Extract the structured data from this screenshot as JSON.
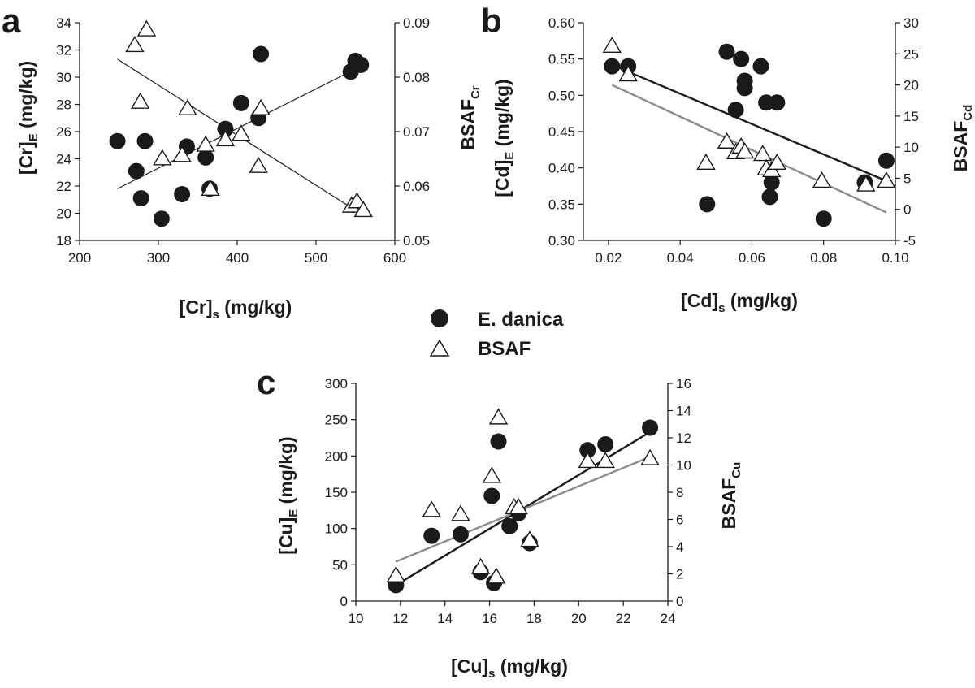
{
  "legend": {
    "position": "center",
    "entries": [
      {
        "label": "E. danica",
        "marker": "filled-circle"
      },
      {
        "label": "BSAF",
        "marker": "open-triangle"
      }
    ]
  },
  "colors": {
    "circle": "#1a1a1a",
    "triangle_fill": "#ffffff",
    "fit_black": "#1a1a1a",
    "fit_gray": "#8c8c8c",
    "fit_thin": "#222222"
  },
  "chart_data": [
    {
      "id": "a",
      "panel_label": "a",
      "type": "scatter",
      "xlabel": {
        "main": "[Cr]",
        "sub": "s",
        "unit": " (mg/kg)"
      },
      "ylabel_left": {
        "main": "[Cr]",
        "sub": "E",
        "unit": " (mg/kg)"
      },
      "ylabel_right": {
        "main": "BSAF",
        "sub": "Cr",
        "unit": ""
      },
      "xlim": [
        200,
        600
      ],
      "ylim_left": [
        18,
        34
      ],
      "ylim_right": [
        0.05,
        0.09
      ],
      "xticks": [
        "200",
        "300",
        "400",
        "500",
        "600"
      ],
      "yticks_left": [
        "18",
        "20",
        "22",
        "24",
        "26",
        "28",
        "30",
        "32",
        "34"
      ],
      "yticks_right": [
        "0.05",
        "0.06",
        "0.07",
        "0.08",
        "0.09"
      ],
      "series": [
        {
          "name": "E. danica",
          "axis": "left",
          "marker": "circle",
          "x": [
            248,
            272,
            278,
            283,
            304,
            330,
            336,
            360,
            365,
            385,
            405,
            427,
            430,
            544,
            550,
            557
          ],
          "y": [
            25.3,
            23.1,
            21.1,
            25.3,
            19.6,
            21.4,
            24.9,
            24.1,
            21.8,
            26.2,
            28.1,
            27.0,
            31.7,
            30.4,
            31.2,
            30.9
          ]
        },
        {
          "name": "BSAF",
          "axis": "right",
          "marker": "triangle",
          "x": [
            270,
            277,
            285,
            305,
            330,
            337,
            360,
            366,
            385,
            405,
            427,
            430,
            545,
            552,
            560
          ],
          "y": [
            0.0859,
            0.0755,
            0.0888,
            0.0651,
            0.0657,
            0.0743,
            0.0676,
            0.0595,
            0.0686,
            0.0696,
            0.0637,
            0.0743,
            0.0564,
            0.0572,
            0.0556
          ]
        }
      ],
      "fits": [
        {
          "axis": "left",
          "style": "thin",
          "x": [
            248,
            557
          ],
          "y": [
            21.8,
            30.8
          ]
        },
        {
          "axis": "right",
          "style": "thin",
          "x": [
            248,
            557
          ],
          "y": [
            0.0833,
            0.0549
          ]
        }
      ]
    },
    {
      "id": "b",
      "panel_label": "b",
      "type": "scatter",
      "xlabel": {
        "main": "[Cd]",
        "sub": "s",
        "unit": " (mg/kg)"
      },
      "ylabel_left": {
        "main": "[Cd]",
        "sub": "E",
        "unit": " (mg/kg)"
      },
      "ylabel_right": {
        "main": "BSAF",
        "sub": "Cd",
        "unit": ""
      },
      "xlim": [
        0.013,
        0.1
      ],
      "ylim_left": [
        0.3,
        0.6
      ],
      "ylim_right": [
        -5,
        30
      ],
      "xticks": [
        "0.02",
        "0.04",
        "0.06",
        "0.08",
        "0.10"
      ],
      "xtick_values": [
        0.02,
        0.04,
        0.06,
        0.08,
        0.1
      ],
      "yticks_left": [
        "0.30",
        "0.35",
        "0.40",
        "0.45",
        "0.50",
        "0.55",
        "0.60"
      ],
      "yticks_right": [
        "-5",
        "0",
        "5",
        "10",
        "15",
        "20",
        "25",
        "30"
      ],
      "series": [
        {
          "name": "E. danica",
          "axis": "left",
          "marker": "circle",
          "x": [
            0.021,
            0.0255,
            0.0475,
            0.053,
            0.0555,
            0.057,
            0.058,
            0.058,
            0.0625,
            0.064,
            0.065,
            0.0655,
            0.067,
            0.08,
            0.0915,
            0.0975
          ],
          "y": [
            0.54,
            0.54,
            0.35,
            0.56,
            0.48,
            0.55,
            0.51,
            0.52,
            0.54,
            0.49,
            0.36,
            0.38,
            0.49,
            0.33,
            0.38,
            0.41
          ]
        },
        {
          "name": "BSAF",
          "axis": "right",
          "marker": "triangle",
          "x": [
            0.021,
            0.0255,
            0.0472,
            0.053,
            0.0555,
            0.057,
            0.058,
            0.063,
            0.064,
            0.0655,
            0.067,
            0.0795,
            0.0918,
            0.0975
          ],
          "y": [
            26.3,
            21.7,
            7.5,
            10.9,
            9.2,
            10.1,
            9.3,
            8.9,
            6.6,
            6.3,
            7.5,
            4.6,
            4.0,
            4.6
          ]
        }
      ],
      "fits": [
        {
          "axis": "left",
          "style": "black",
          "x": [
            0.021,
            0.0975
          ],
          "y": [
            0.542,
            0.382
          ]
        },
        {
          "axis": "right",
          "style": "gray",
          "x": [
            0.021,
            0.0975
          ],
          "y": [
            20.0,
            -0.5
          ]
        }
      ]
    },
    {
      "id": "c",
      "panel_label": "c",
      "type": "scatter",
      "xlabel": {
        "main": "[Cu]",
        "sub": "s",
        "unit": " (mg/kg)"
      },
      "ylabel_left": {
        "main": "[Cu]",
        "sub": "E",
        "unit": " (mg/kg)"
      },
      "ylabel_right": {
        "main": "BSAF",
        "sub": "Cu",
        "unit": ""
      },
      "xlim": [
        10,
        24
      ],
      "ylim_left": [
        0,
        300
      ],
      "ylim_right": [
        0,
        16
      ],
      "xticks": [
        "10",
        "12",
        "14",
        "16",
        "18",
        "20",
        "22",
        "24"
      ],
      "yticks_left": [
        "0",
        "50",
        "100",
        "150",
        "200",
        "250",
        "300"
      ],
      "yticks_right": [
        "0",
        "2",
        "4",
        "6",
        "8",
        "10",
        "12",
        "14",
        "16"
      ],
      "series": [
        {
          "name": "E. danica",
          "axis": "left",
          "marker": "circle",
          "x": [
            11.8,
            13.4,
            14.7,
            15.6,
            16.1,
            16.2,
            16.4,
            16.9,
            17.3,
            17.8,
            20.4,
            21.2,
            23.2
          ],
          "y": [
            22,
            90,
            92,
            40,
            145,
            25,
            220,
            103,
            121,
            80,
            208,
            216,
            239
          ]
        },
        {
          "name": "BSAF",
          "axis": "right",
          "marker": "triangle",
          "x": [
            11.8,
            13.4,
            14.7,
            15.6,
            16.1,
            16.3,
            16.4,
            17.1,
            17.3,
            17.8,
            20.4,
            21.2,
            23.2
          ],
          "y": [
            1.9,
            6.7,
            6.4,
            2.5,
            9.2,
            1.8,
            13.5,
            6.9,
            6.9,
            4.5,
            10.3,
            10.3,
            10.5
          ]
        }
      ],
      "fits": [
        {
          "axis": "left",
          "style": "black",
          "x": [
            11.8,
            23.2
          ],
          "y": [
            22,
            233
          ]
        },
        {
          "axis": "right",
          "style": "gray",
          "x": [
            11.8,
            23.2
          ],
          "y": [
            2.9,
            10.6
          ]
        }
      ]
    }
  ]
}
